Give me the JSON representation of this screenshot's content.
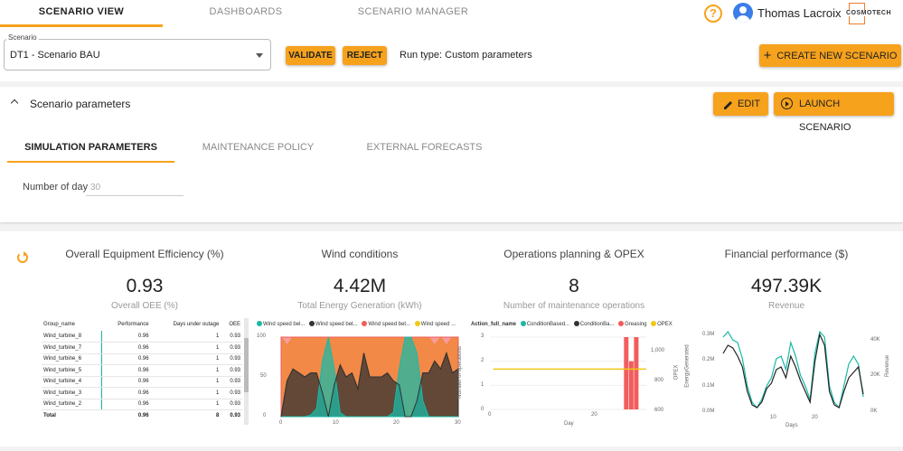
{
  "nav": {
    "tabs": [
      {
        "label": "SCENARIO VIEW"
      },
      {
        "label": "DASHBOARDS"
      },
      {
        "label": "SCENARIO MANAGER"
      }
    ],
    "help_glyph": "?",
    "user": "Thomas Lacroix",
    "logo_text": "COSMOTECH"
  },
  "scenario": {
    "label": "Scenario",
    "value": "DT1 - Scenario BAU",
    "validate": "VALIDATE",
    "reject": "REJECT",
    "run_type": "Run type: Custom parameters",
    "create": "CREATE NEW SCENARIO"
  },
  "params": {
    "title": "Scenario parameters",
    "edit": "EDIT",
    "launch": "LAUNCH SCENARIO",
    "tabs": [
      {
        "label": "SIMULATION PARAMETERS"
      },
      {
        "label": "MAINTENANCE POLICY"
      },
      {
        "label": "EXTERNAL FORECASTS"
      }
    ],
    "days_label": "Number of day",
    "days_value": "30"
  },
  "colors": {
    "accent": "#f7a21c",
    "teal": "#19b9a5",
    "dark": "#333333",
    "red": "#f25c5c",
    "yellow": "#f2c811"
  },
  "kpis": [
    {
      "title": "Overall Equipment Efficiency (%)",
      "value": "0.93",
      "sub": "Overall OEE (%)"
    },
    {
      "title": "Wind conditions",
      "value": "4.42M",
      "sub": "Total Energy Generation (kWh)"
    },
    {
      "title": "Operations planning & OPEX",
      "value": "8",
      "sub": "Number of maintenance operations"
    },
    {
      "title": "Financial performance ($)",
      "value": "497.39K",
      "sub": "Revenue"
    }
  ],
  "oee_table": {
    "headers": [
      "Group_name",
      "Performance",
      "Days under outage",
      "OEE"
    ],
    "rows": [
      [
        "Wind_turbine_8",
        "0.96",
        "1",
        "0.93"
      ],
      [
        "Wind_turbine_7",
        "0.96",
        "1",
        "0.93"
      ],
      [
        "Wind_turbine_6",
        "0.96",
        "1",
        "0.93"
      ],
      [
        "Wind_turbine_5",
        "0.96",
        "1",
        "0.93"
      ],
      [
        "Wind_turbine_4",
        "0.96",
        "1",
        "0.93"
      ],
      [
        "Wind_turbine_3",
        "0.96",
        "1",
        "0.93"
      ],
      [
        "Wind_turbine_2",
        "0.96",
        "1",
        "0.93"
      ]
    ],
    "total": [
      "Total",
      "0.96",
      "8",
      "0.93"
    ]
  },
  "chart_data": [
    {
      "type": "area",
      "legend": [
        "Wind speed bel...",
        "Wind speed bet...",
        "Wind speed bet...",
        "Wind speed ..."
      ],
      "colors": [
        "#19b9a5",
        "#333333",
        "#f25c5c",
        "#f2c811"
      ],
      "ylim": [
        0,
        100
      ],
      "yticks": [
        "100",
        "50",
        "0"
      ],
      "xticks": [
        "0",
        "10",
        "20",
        "30"
      ],
      "x": [
        0,
        1,
        2,
        3,
        4,
        5,
        6,
        7,
        8,
        9,
        10,
        11,
        12,
        13,
        14,
        15,
        16,
        17,
        18,
        19,
        20,
        21,
        22,
        23,
        24,
        25,
        26,
        27,
        28,
        29,
        30
      ],
      "series": [
        {
          "values": [
            0,
            0,
            0,
            0,
            0,
            2,
            10,
            70,
            100,
            60,
            5,
            0,
            0,
            0,
            0,
            0,
            0,
            0,
            0,
            5,
            60,
            100,
            100,
            80,
            20,
            0,
            0,
            0,
            0,
            0,
            0
          ]
        },
        {
          "values": [
            0,
            45,
            60,
            55,
            50,
            55,
            55,
            30,
            0,
            40,
            65,
            50,
            55,
            35,
            80,
            50,
            50,
            50,
            55,
            45,
            40,
            0,
            0,
            20,
            55,
            55,
            70,
            60,
            80,
            55,
            60
          ]
        },
        {
          "values": [
            100,
            100,
            100,
            100,
            100,
            100,
            100,
            100,
            100,
            100,
            100,
            100,
            100,
            100,
            100,
            100,
            100,
            100,
            100,
            100,
            100,
            100,
            100,
            100,
            100,
            100,
            100,
            100,
            100,
            100,
            100
          ]
        },
        {
          "values": [
            100,
            90,
            100,
            100,
            100,
            100,
            100,
            100,
            100,
            100,
            100,
            100,
            100,
            100,
            100,
            100,
            100,
            100,
            100,
            100,
            100,
            100,
            100,
            100,
            100,
            100,
            90,
            100,
            90,
            100,
            100
          ]
        }
      ]
    },
    {
      "type": "bar",
      "legend_title": "Action_full_name",
      "legend": [
        "ConditionBased...",
        "ConditionBa...",
        "Greasing",
        "OPEX"
      ],
      "colors": [
        "#19b9a5",
        "#333333",
        "#f25c5c",
        "#f2c811"
      ],
      "ylabel": "Number of operations",
      "y2label": "OPEX",
      "xlabel": "Day",
      "ylim": [
        0,
        3
      ],
      "yticks": [
        "3",
        "2",
        "1",
        "0"
      ],
      "y2ticks": [
        "1,000",
        "800",
        "600"
      ],
      "xticks": [
        "0",
        "20"
      ],
      "bars": [
        {
          "day": 27,
          "value": 3
        },
        {
          "day": 28,
          "value": 2
        },
        {
          "day": 29,
          "value": 3
        }
      ],
      "opex_value": 850,
      "y2lim": [
        560,
        1080
      ]
    },
    {
      "type": "line",
      "ylabel": "EnergyGenerated",
      "y2label": "Revenue",
      "xlabel": "Days",
      "yticks": [
        "0.3M",
        "0.2M",
        "0.1M",
        "0.0M"
      ],
      "y2ticks": [
        "40K",
        "20K",
        "0K"
      ],
      "xticks": [
        "10",
        "20"
      ],
      "ylim": [
        0,
        0.3
      ],
      "x": [
        1,
        2,
        3,
        4,
        5,
        6,
        7,
        8,
        9,
        10,
        11,
        12,
        13,
        14,
        15,
        16,
        17,
        18,
        19,
        20,
        21,
        22,
        23,
        24,
        25,
        26,
        27,
        28,
        29,
        30
      ],
      "series": [
        {
          "name": "EnergyGenerated",
          "color": "#19b9a5",
          "values": [
            0.28,
            0.3,
            0.27,
            0.26,
            0.2,
            0.1,
            0.04,
            0.02,
            0.05,
            0.1,
            0.13,
            0.2,
            0.21,
            0.16,
            0.26,
            0.21,
            0.14,
            0.1,
            0.05,
            0.22,
            0.3,
            0.28,
            0.1,
            0.04,
            0.02,
            0.1,
            0.18,
            0.21,
            0.18,
            0.06
          ]
        },
        {
          "name": "Revenue",
          "color": "#222222",
          "values": [
            0.22,
            0.25,
            0.24,
            0.21,
            0.17,
            0.08,
            0.03,
            0.02,
            0.04,
            0.09,
            0.11,
            0.16,
            0.17,
            0.13,
            0.21,
            0.17,
            0.12,
            0.08,
            0.04,
            0.19,
            0.29,
            0.25,
            0.08,
            0.03,
            0.02,
            0.08,
            0.13,
            0.15,
            0.17,
            0.07
          ]
        }
      ]
    }
  ]
}
